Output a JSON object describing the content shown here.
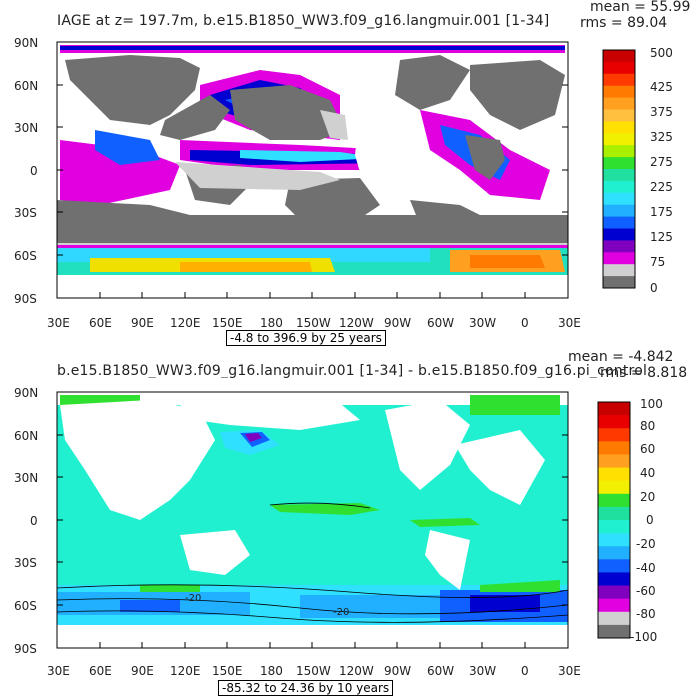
{
  "panel1": {
    "title": "IAGE at z= 197.7m, b.e15.B1850_WW3.f09_g16.langmuir.001 [1-34]",
    "mean": "mean = 55.99",
    "rms": "rms = 89.04",
    "range": "-4.8 to 396.9 by 25 years",
    "colorbar": {
      "labels": [
        "500",
        "425",
        "375",
        "325",
        "275",
        "225",
        "175",
        "125",
        "75",
        "0"
      ],
      "colors": [
        "#c80000",
        "#e80000",
        "#ff3a00",
        "#ff7a00",
        "#ffa020",
        "#ffc040",
        "#ffe000",
        "#f0f000",
        "#a8f000",
        "#30e030",
        "#20e0a0",
        "#20f0d0",
        "#30e0ff",
        "#20b0ff",
        "#1060ff",
        "#0000d0",
        "#8000c0",
        "#e000e0",
        "#d0d0d0",
        "#707070"
      ]
    }
  },
  "panel2": {
    "title": "b.e15.B1850_WW3.f09_g16.langmuir.001 [1-34] - b.e15.B1850.f09_g16.pi_control",
    "mean": "mean = -4.842",
    "rms": "rms = 8.818",
    "range": "-85.32 to 24.36 by 10 years",
    "colorbar": {
      "labels": [
        "100",
        "80",
        "60",
        "40",
        "20",
        "0",
        "-20",
        "-40",
        "-60",
        "-80",
        "-100"
      ],
      "colors": [
        "#c80000",
        "#e80000",
        "#ff3a00",
        "#ff7a00",
        "#ffa020",
        "#ffe000",
        "#f0f000",
        "#30e030",
        "#20e0a0",
        "#20f0d0",
        "#30e0ff",
        "#20b0ff",
        "#1060ff",
        "#0000d0",
        "#8000c0",
        "#e000e0",
        "#d0d0d0",
        "#707070"
      ]
    }
  },
  "axes": {
    "lat_ticks": [
      "90N",
      "60N",
      "30N",
      "0",
      "30S",
      "60S",
      "90S"
    ],
    "lon_ticks": [
      "30E",
      "60E",
      "90E",
      "120E",
      "150E",
      "180",
      "150W",
      "120W",
      "90W",
      "60W",
      "30W",
      "0",
      "30E"
    ]
  },
  "contour_labels": [
    "-20",
    "-20"
  ]
}
